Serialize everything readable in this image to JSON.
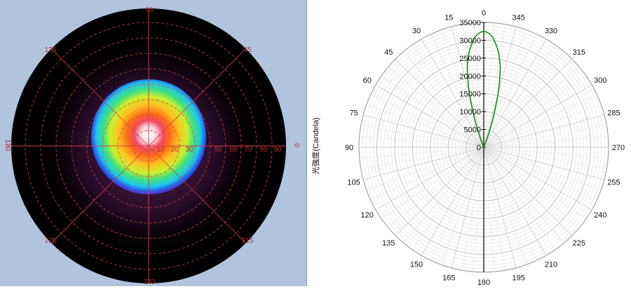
{
  "chart_data": [
    {
      "type": "heatmap",
      "title": "",
      "angle_labels": [
        "90",
        "45",
        "0",
        "315",
        "270",
        "225",
        "180",
        "135"
      ],
      "radius_labels": [
        "10",
        "20",
        "30",
        "50",
        "60",
        "70",
        "80",
        "90"
      ],
      "colors": {
        "background": "#b0c4de",
        "disk": "#000000",
        "grid": "#d04040"
      }
    },
    {
      "type": "line",
      "subtype": "polar",
      "title": "",
      "ylabel": "光強度(Candela)",
      "angle_ticks": [
        "0",
        "15",
        "30",
        "45",
        "60",
        "75",
        "90",
        "105",
        "120",
        "135",
        "150",
        "165",
        "180",
        "195",
        "210",
        "225",
        "240",
        "255",
        "270",
        "285",
        "300",
        "315",
        "330",
        "345"
      ],
      "radial_ticks": [
        0,
        5000,
        10000,
        15000,
        20000,
        25000,
        30000,
        35000
      ],
      "rlim": [
        0,
        35000
      ],
      "grid": true,
      "series": [
        {
          "color": "#1a8a1a",
          "angles": [
            -20,
            -18,
            -15,
            -12,
            -10,
            -8,
            -5,
            -3,
            0,
            3,
            5,
            8,
            10,
            12,
            15,
            18,
            20
          ],
          "values": [
            3200,
            8000,
            15500,
            22200,
            25300,
            27800,
            30600,
            31800,
            32500,
            31800,
            30600,
            27800,
            25300,
            22200,
            15500,
            8000,
            3200
          ]
        }
      ]
    }
  ]
}
